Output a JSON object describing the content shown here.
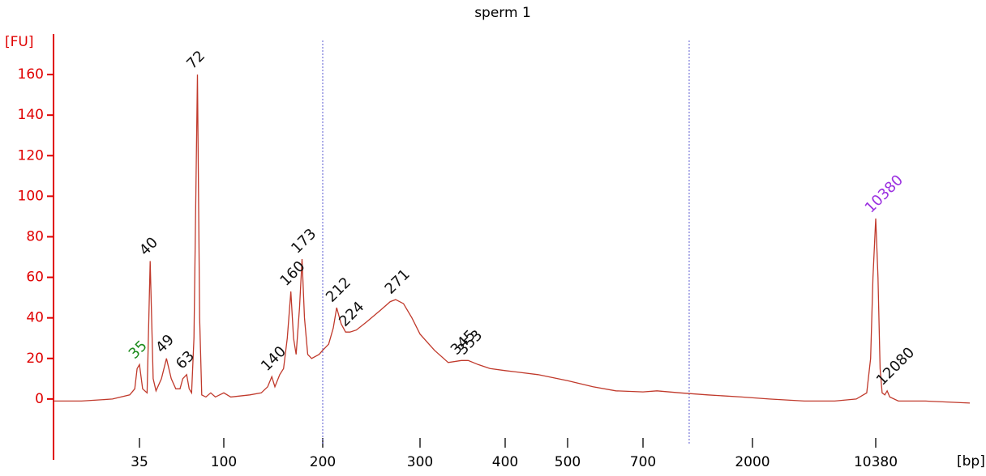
{
  "chart_data": {
    "type": "line",
    "title": "sperm 1",
    "y_label": "[FU]",
    "x_label": "[bp]",
    "log_ladder_scale": true,
    "xlim": [
      12,
      36000
    ],
    "ylim": [
      -30,
      180
    ],
    "xticks": [
      35,
      100,
      200,
      300,
      400,
      500,
      700,
      2000,
      10380
    ],
    "yticks": [
      0,
      20,
      40,
      60,
      80,
      100,
      120,
      140,
      160
    ],
    "axis_color": "#e00000",
    "marker_lines": [
      200,
      1090
    ],
    "series": [
      {
        "color": "#c0392b",
        "x": [
          12,
          17,
          25,
          31,
          33,
          34,
          35,
          36.4,
          38.5,
          40,
          41.5,
          43,
          46,
          49,
          52,
          55,
          58,
          60,
          63,
          65,
          67,
          69,
          72,
          74,
          76,
          80,
          85,
          90,
          100,
          105,
          120,
          130,
          136,
          140,
          143,
          148,
          152,
          156,
          160,
          163,
          166,
          170,
          173,
          176,
          180,
          185,
          195,
          200,
          205,
          209,
          212,
          216,
          220,
          224,
          230,
          240,
          255,
          265,
          271,
          280,
          290,
          300,
          315,
          330,
          345,
          353,
          365,
          380,
          400,
          450,
          500,
          560,
          620,
          700,
          800,
          1000,
          1300,
          1800,
          2500,
          4000,
          6000,
          8000,
          9200,
          9700,
          10000,
          10380,
          10700,
          11000,
          11300,
          11700,
          12080,
          12500,
          14000,
          20000,
          36000
        ],
        "values": [
          -1,
          -1,
          0,
          2,
          5,
          15,
          17,
          5,
          3,
          68,
          10,
          4,
          10,
          20,
          10,
          5,
          5,
          10,
          12,
          5,
          3,
          30,
          160,
          40,
          2,
          1,
          3,
          1,
          3,
          1,
          2,
          3,
          6,
          11,
          6,
          12,
          15,
          30,
          53,
          30,
          22,
          45,
          69,
          40,
          22,
          20,
          22,
          24,
          27,
          35,
          45,
          37,
          33,
          33,
          34,
          38,
          44,
          48,
          49,
          47,
          40,
          32,
          24,
          18,
          19,
          19,
          17,
          15,
          14,
          12,
          9,
          6,
          4,
          3.5,
          4,
          3,
          2,
          1,
          0,
          -1,
          -1,
          0,
          3,
          20,
          60,
          89,
          60,
          15,
          3,
          2,
          4,
          1,
          -1,
          -1,
          -2
        ]
      }
    ],
    "peaks": [
      {
        "x": 35,
        "y": 17,
        "color": "#1e8c1e"
      },
      {
        "x": 40,
        "y": 68,
        "color": "#111111"
      },
      {
        "x": 49,
        "y": 20,
        "color": "#111111"
      },
      {
        "x": 63,
        "y": 12,
        "color": "#111111"
      },
      {
        "x": 72,
        "y": 160,
        "color": "#111111"
      },
      {
        "x": 140,
        "y": 11,
        "color": "#111111"
      },
      {
        "x": 160,
        "y": 53,
        "color": "#111111"
      },
      {
        "x": 173,
        "y": 69,
        "color": "#111111"
      },
      {
        "x": 212,
        "y": 45,
        "color": "#111111"
      },
      {
        "x": 224,
        "y": 33,
        "color": "#111111"
      },
      {
        "x": 271,
        "y": 49,
        "color": "#111111"
      },
      {
        "x": 345,
        "y": 19,
        "color": "#111111"
      },
      {
        "x": 353,
        "y": 19,
        "color": "#111111"
      },
      {
        "x": 10380,
        "y": 89,
        "color": "#9b30e0"
      },
      {
        "x": 12080,
        "y": 4,
        "color": "#111111"
      }
    ]
  }
}
